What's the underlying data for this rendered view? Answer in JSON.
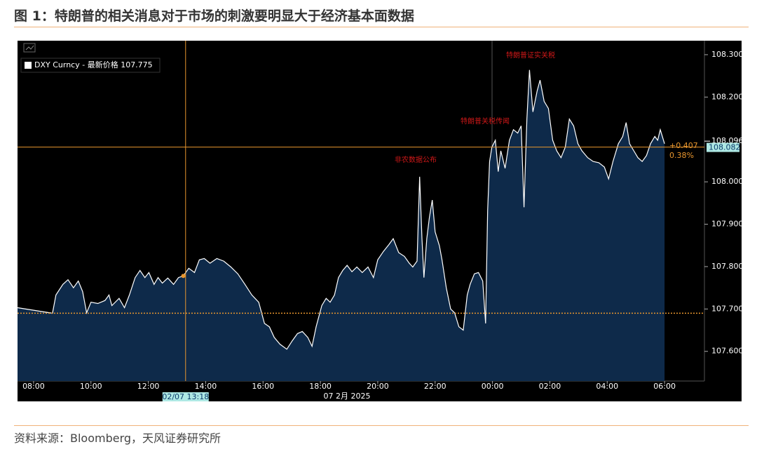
{
  "title": "图 1：特朗普的相关消息对于市场的刺激要明显大于经济基本面数据",
  "source": "资料来源：Bloomberg，天风证券研究所",
  "chart_data": {
    "type": "area",
    "series": [
      {
        "name": "DXY Curncy - 最新价格 107.775",
        "color": "#ffffff",
        "values": [
          107.703,
          107.69,
          107.733,
          107.758,
          107.769,
          107.75,
          107.766,
          107.741,
          107.691,
          107.716,
          107.713,
          107.72,
          107.733,
          107.708,
          107.725,
          107.703,
          107.733,
          107.774,
          107.791,
          107.774,
          107.786,
          107.758,
          107.774,
          107.761,
          107.773,
          107.758,
          107.774,
          107.778,
          107.796,
          107.786,
          107.816,
          107.819,
          107.808,
          107.819,
          107.813,
          107.799,
          107.783,
          107.758,
          107.733,
          107.716,
          107.666,
          107.658,
          107.633,
          107.617,
          107.605,
          107.625,
          107.642,
          107.647,
          107.633,
          107.612,
          107.658,
          107.708,
          107.725,
          107.716,
          107.733,
          107.774,
          107.791,
          107.803,
          107.788,
          107.799,
          107.786,
          107.799,
          107.774,
          107.816,
          107.836,
          107.852,
          107.866,
          107.833,
          107.824,
          107.808,
          107.799,
          107.813,
          108.012,
          107.866,
          107.774,
          107.866,
          107.916,
          107.957,
          107.882,
          107.849,
          107.816,
          107.75,
          107.7,
          107.691,
          107.658,
          107.65,
          107.733,
          107.758,
          107.783,
          107.786,
          107.766,
          107.666,
          107.932,
          108.048,
          108.082,
          108.098,
          108.024,
          108.073,
          108.032,
          108.098,
          108.123,
          108.115,
          108.132,
          107.94,
          108.148,
          108.264,
          108.165,
          108.215,
          108.24,
          108.19,
          108.173,
          108.098,
          108.073,
          108.057,
          108.082,
          108.148,
          108.132,
          108.09,
          108.073,
          108.057,
          108.048,
          108.045,
          108.035,
          108.007,
          108.048,
          108.09,
          108.107,
          108.14,
          108.09,
          108.073,
          108.057,
          108.048,
          108.062,
          108.09,
          108.107,
          108.098,
          108.123,
          108.09
        ]
      }
    ],
    "x": [
      7.44,
      8.66,
      8.78,
      9.02,
      9.2,
      9.39,
      9.56,
      9.71,
      9.85,
      10.0,
      10.24,
      10.49,
      10.63,
      10.73,
      10.98,
      11.17,
      11.34,
      11.54,
      11.71,
      11.88,
      12.02,
      12.2,
      12.34,
      12.49,
      12.68,
      12.88,
      13.05,
      13.22,
      13.41,
      13.61,
      13.78,
      13.95,
      14.15,
      14.39,
      14.63,
      14.88,
      15.12,
      15.37,
      15.61,
      15.85,
      16.05,
      16.22,
      16.39,
      16.59,
      16.83,
      17.02,
      17.2,
      17.37,
      17.56,
      17.71,
      17.85,
      18.05,
      18.2,
      18.34,
      18.49,
      18.63,
      18.78,
      18.93,
      19.1,
      19.27,
      19.46,
      19.66,
      19.85,
      20.0,
      20.2,
      20.39,
      20.54,
      20.73,
      20.93,
      21.1,
      21.22,
      21.37,
      21.46,
      21.54,
      21.61,
      21.71,
      21.8,
      21.9,
      22.0,
      22.15,
      22.24,
      22.39,
      22.54,
      22.68,
      22.83,
      22.98,
      23.12,
      23.22,
      23.37,
      23.51,
      23.66,
      23.76,
      23.83,
      23.9,
      23.98,
      24.1,
      24.2,
      24.29,
      24.44,
      24.59,
      24.73,
      24.88,
      25.0,
      25.1,
      25.2,
      25.29,
      25.41,
      25.56,
      25.66,
      25.8,
      25.95,
      26.1,
      26.24,
      26.39,
      26.54,
      26.68,
      26.83,
      26.98,
      27.12,
      27.32,
      27.51,
      27.71,
      27.9,
      28.05,
      28.2,
      28.39,
      28.54,
      28.66,
      28.78,
      28.93,
      29.07,
      29.22,
      29.37,
      29.51,
      29.66,
      29.76,
      29.85,
      30.0
    ],
    "xlim": [
      7.44,
      31.39
    ],
    "xticks": [
      {
        "value": 8,
        "label": "08:00"
      },
      {
        "value": 10,
        "label": "10:00"
      },
      {
        "value": 12,
        "label": "12:00"
      },
      {
        "value": 14,
        "label": "14:00"
      },
      {
        "value": 16,
        "label": "16:00"
      },
      {
        "value": 18,
        "label": "18:00"
      },
      {
        "value": 20,
        "label": "20:00"
      },
      {
        "value": 22,
        "label": "22:00"
      },
      {
        "value": 24,
        "label": "00:00"
      },
      {
        "value": 26,
        "label": "02:00"
      },
      {
        "value": 28,
        "label": "04:00"
      },
      {
        "value": 30,
        "label": "06:00"
      }
    ],
    "x_date_label": "07 2月 2025",
    "ylim": [
      107.53,
      108.333
    ],
    "yticks": [
      {
        "value": 107.6,
        "label": "107.600"
      },
      {
        "value": 107.7,
        "label": "107.700"
      },
      {
        "value": 107.8,
        "label": "107.800"
      },
      {
        "value": 107.9,
        "label": "107.900"
      },
      {
        "value": 108.0,
        "label": "108.000"
      },
      {
        "value": 108.2,
        "label": "108.200"
      },
      {
        "value": 108.3,
        "label": "108.300"
      }
    ],
    "fill_color": "#0e2a4a",
    "crosshair": {
      "x": 13.3,
      "label": "02/07 13:18",
      "color": "#e8962e"
    },
    "reference_lines": [
      {
        "value": 107.69,
        "color": "#e8962e",
        "style": "dotted"
      },
      {
        "value": 108.082,
        "color": "#e8962e",
        "style": "solid"
      }
    ],
    "last_price": 108.096,
    "mark_price": 108.082,
    "change": {
      "value": 0.407,
      "label": "+0.407"
    },
    "change_pct": {
      "value": 0.38,
      "label": "0.38%"
    },
    "annotations": [
      "特朗普证实关税",
      "特朗普关税传闻",
      "非农数据公布"
    ],
    "annotation_color": "#d01818"
  }
}
